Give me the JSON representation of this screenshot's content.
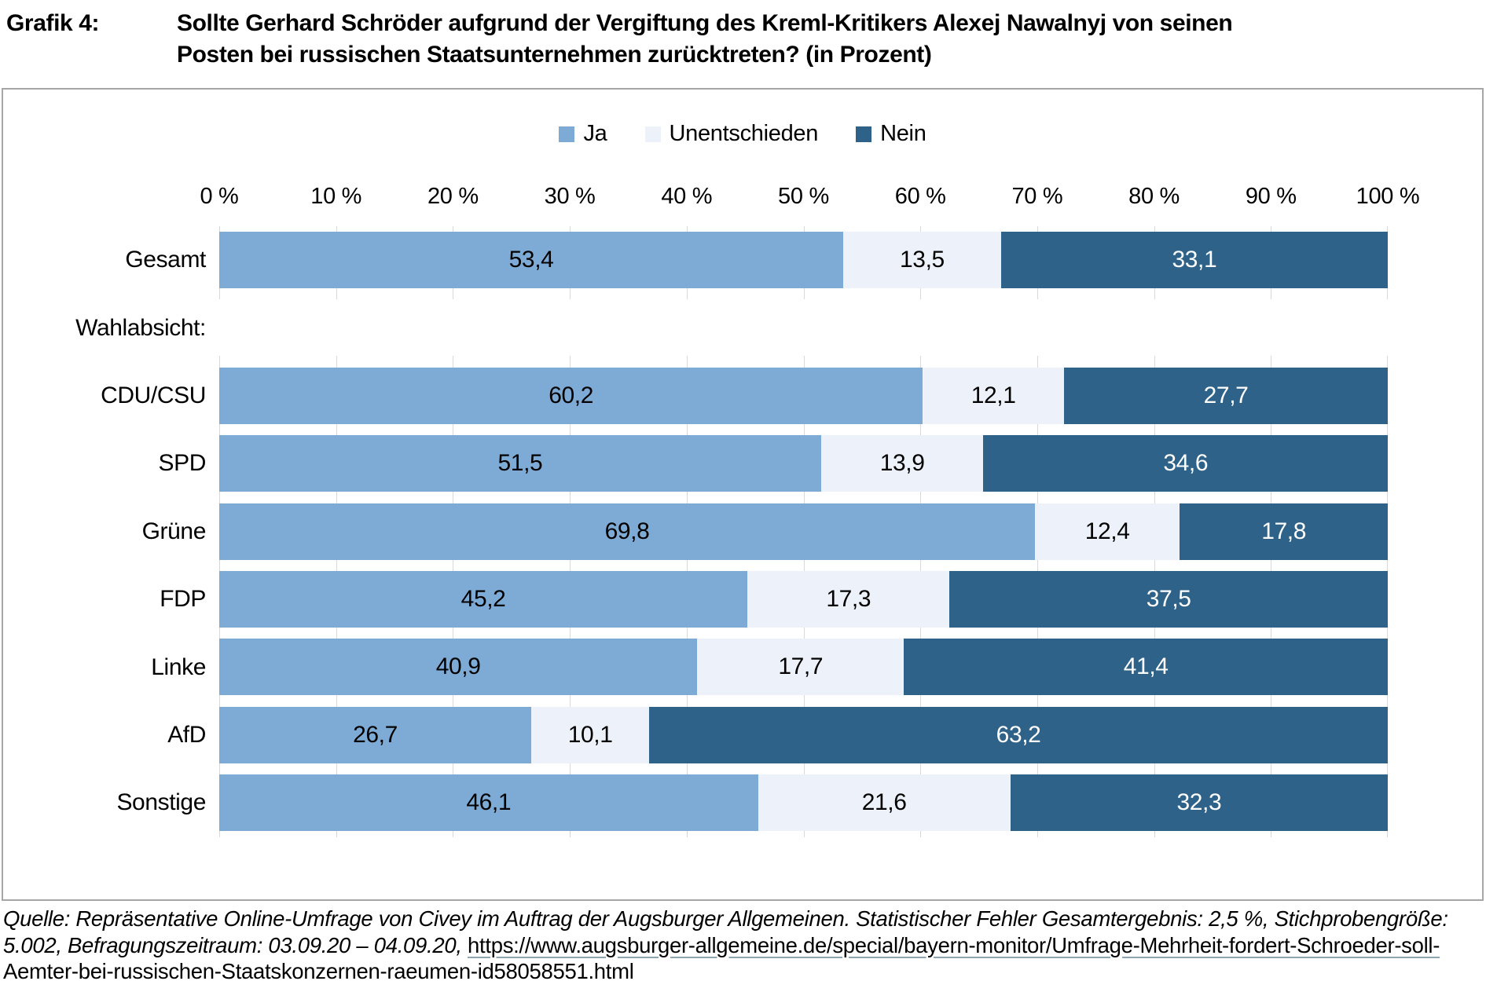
{
  "title": {
    "tag": "Grafik 4:",
    "lines": [
      "Sollte Gerhard Schröder aufgrund der Vergiftung des Kreml-Kritikers Alexej Nawalnyj von seinen",
      "Posten bei russischen Staatsunternehmen zurücktreten? (in Prozent)"
    ]
  },
  "legend": {
    "items": [
      {
        "label": "Ja",
        "color": "#7EABD5"
      },
      {
        "label": "Unentschieden",
        "color": "#EDF2FA"
      },
      {
        "label": "Nein",
        "color": "#2E6289"
      }
    ]
  },
  "axis": {
    "tick_labels": [
      "0 %",
      "10 %",
      "20 %",
      "30 %",
      "40 %",
      "50 %",
      "60 %",
      "70 %",
      "80 %",
      "90 %",
      "100 %"
    ],
    "min": 0,
    "max": 100,
    "gridline_color": "#D9D9D9"
  },
  "chart_data": {
    "type": "bar",
    "orientation": "horizontal",
    "stacked": true,
    "title": "Sollte Gerhard Schröder aufgrund der Vergiftung des Kreml-Kritikers Alexej Nawalnyj von seinen Posten bei russischen Staatsunternehmen zurücktreten? (in Prozent)",
    "xlim": [
      0,
      100
    ],
    "legend_position": "top",
    "section_label": "Wahlabsicht:",
    "categories": [
      "Gesamt",
      "CDU/CSU",
      "SPD",
      "Grüne",
      "FDP",
      "Linke",
      "AfD",
      "Sonstige"
    ],
    "series": [
      {
        "name": "Ja",
        "color": "#7EABD5",
        "text_color": "#000000",
        "values": [
          53.4,
          60.2,
          51.5,
          69.8,
          45.2,
          40.9,
          26.7,
          46.1
        ]
      },
      {
        "name": "Unentschieden",
        "color": "#EDF2FA",
        "text_color": "#000000",
        "values": [
          13.5,
          12.1,
          13.9,
          12.4,
          17.3,
          17.7,
          10.1,
          21.6
        ]
      },
      {
        "name": "Nein",
        "color": "#2E6289",
        "text_color": "#FFFFFF",
        "values": [
          33.1,
          27.7,
          34.6,
          17.8,
          37.5,
          41.4,
          63.2,
          32.3
        ]
      }
    ],
    "decimal_separator": ","
  },
  "footer": {
    "text": "Quelle: Repräsentative Online-Umfrage von Civey im Auftrag der Augsburger Allgemeinen. Statistischer Fehler Gesamtergebnis: 2,5 %, Stichprobengröße: 5.002, Befragungszeitraum: 03.09.20 – 04.09.20, ",
    "link": "https://www.augsburger-allgemeine.de/special/bayern-monitor/Umfrage-Mehrheit-fordert-Schroeder-soll-Aemter-bei-russischen-Staatskonzernen-raeumen-id58058551.html"
  },
  "colors": {
    "chart_border": "#A6A6A6",
    "link_underline": "#8FA5B2"
  }
}
